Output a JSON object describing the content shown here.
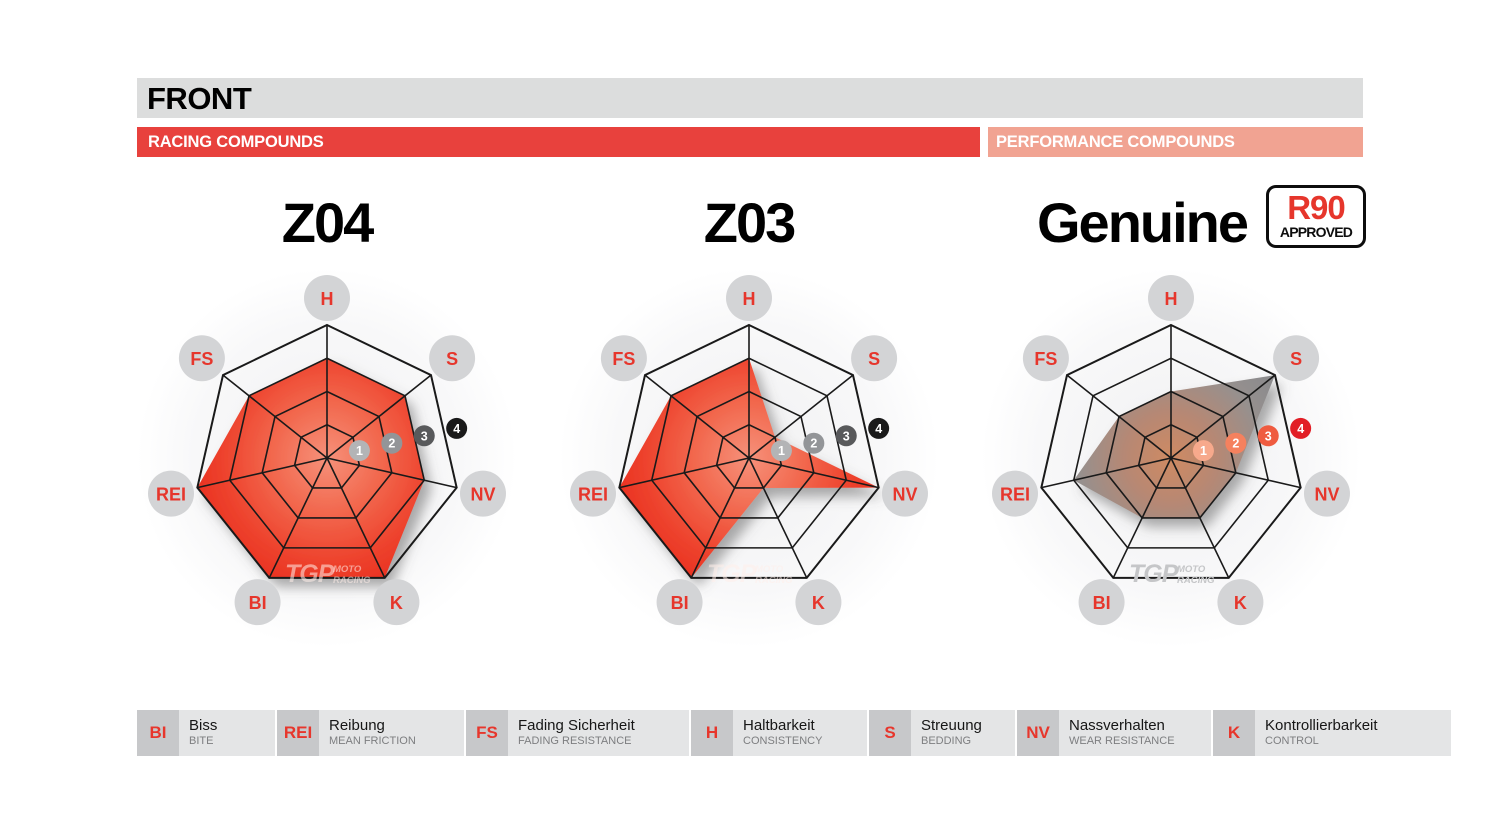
{
  "header": {
    "title": "FRONT",
    "racing_label": "RACING COMPOUNDS",
    "performance_label": "PERFORMANCE COMPOUNDS",
    "header_bg": "#dcdddd",
    "racing_color": "#e8413d",
    "performance_color": "#f1a392"
  },
  "watermark": {
    "logo": "TGP",
    "moto": "MOTO",
    "racing": "RACING"
  },
  "scale_labels": [
    "1",
    "2",
    "3",
    "4"
  ],
  "themes": {
    "red": {
      "badge_colors": [
        "#b3b4b6",
        "#939598",
        "#58595b",
        "#1a1a1a"
      ],
      "fill_stops": [
        [
          "0%",
          "#f6917a"
        ],
        [
          "40%",
          "#f2694f"
        ],
        [
          "75%",
          "#ee452f"
        ],
        [
          "100%",
          "#ea3222"
        ]
      ],
      "watermark_color": "rgba(255,238,234,0.55)"
    },
    "gray": {
      "badge_colors": [
        "#f7a98c",
        "#f5815e",
        "#ef5b40",
        "#e21e26"
      ],
      "fill_stops": [
        [
          "0%",
          "#cf8a62"
        ],
        [
          "35%",
          "#b68874"
        ],
        [
          "70%",
          "#96908e"
        ],
        [
          "100%",
          "#898a8d"
        ]
      ],
      "watermark_color": "#c5c6c8"
    }
  },
  "axis_label_color": "#e6362c",
  "axis_circle_color": "#d3d4d6",
  "chart_data": [
    {
      "type": "radar",
      "title": "Z04",
      "theme": "red",
      "categories": [
        "H",
        "S",
        "NV",
        "K",
        "BI",
        "REI",
        "FS"
      ],
      "values": [
        3,
        3,
        3,
        4,
        4,
        4,
        3
      ],
      "range": [
        0,
        4
      ]
    },
    {
      "type": "radar",
      "title": "Z03",
      "theme": "red",
      "categories": [
        "H",
        "S",
        "NV",
        "K",
        "BI",
        "REI",
        "FS"
      ],
      "values": [
        3,
        1,
        4,
        1,
        4,
        4,
        3
      ],
      "range": [
        0,
        4
      ]
    },
    {
      "type": "radar",
      "title": "Genuine",
      "theme": "gray",
      "categories": [
        "H",
        "S",
        "NV",
        "K",
        "BI",
        "REI",
        "FS"
      ],
      "values": [
        2,
        4,
        2,
        2,
        2,
        3,
        2
      ],
      "range": [
        0,
        4
      ],
      "approval_badge": {
        "line1": "R90",
        "line2": "APPROVED"
      }
    }
  ],
  "legend": [
    {
      "abbr": "BI",
      "term": "Biss",
      "translation": "BITE"
    },
    {
      "abbr": "REI",
      "term": "Reibung",
      "translation": "MEAN FRICTION"
    },
    {
      "abbr": "FS",
      "term": "Fading Sicherheit",
      "translation": "FADING RESISTANCE"
    },
    {
      "abbr": "H",
      "term": "Haltbarkeit",
      "translation": "CONSISTENCY"
    },
    {
      "abbr": "S",
      "term": "Streuung",
      "translation": "BEDDING"
    },
    {
      "abbr": "NV",
      "term": "Nassverhalten",
      "translation": "WEAR RESISTANCE"
    },
    {
      "abbr": "K",
      "term": "Kontrollierbarkeit",
      "translation": "CONTROL"
    }
  ]
}
